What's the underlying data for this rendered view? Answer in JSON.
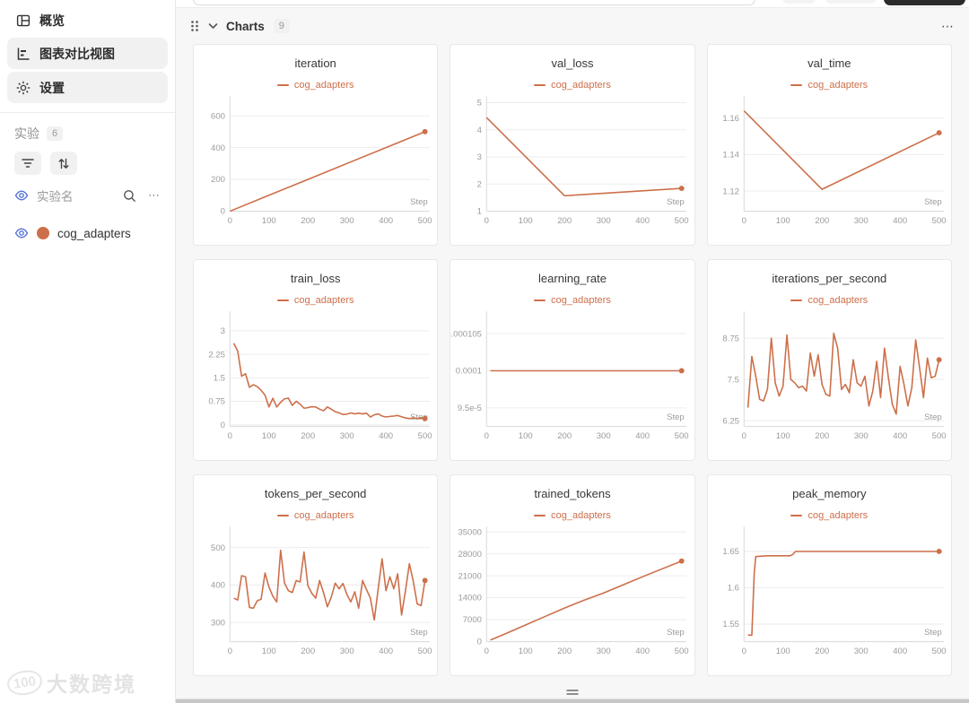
{
  "colors": {
    "accent": "#cd6f4a",
    "eye_icon": "#4e6ed3"
  },
  "sidebar": {
    "nav": [
      {
        "label": "概览",
        "icon": "overview-grid-icon"
      },
      {
        "label": "图表对比视图",
        "icon": "chart-compare-icon"
      },
      {
        "label": "设置",
        "icon": "settings-gear-icon"
      }
    ],
    "experiments_label": "实验",
    "experiments_count": "6",
    "experiment_name_label": "实验名",
    "row_menu_icon": "⋯",
    "experiments": [
      {
        "name": "cog_adapters",
        "color": "#cd6f4a"
      }
    ]
  },
  "chart_header": {
    "title": "Charts",
    "count": "9",
    "menu_icon": "⋯"
  },
  "watermark": {
    "logo_text": "100",
    "brand": "大数跨境"
  },
  "chart_data": [
    {
      "type": "line",
      "title": "iteration",
      "series_name": "cog_adapters",
      "xlabel": "Step",
      "xlim": [
        0,
        512
      ],
      "xticks": [
        0,
        100,
        200,
        300,
        400,
        500
      ],
      "ylim": [
        0,
        700
      ],
      "yticks": [
        0,
        200,
        400,
        600
      ],
      "ytick_labels": [
        "0",
        "200",
        "400",
        "600"
      ],
      "x": [
        0,
        100,
        200,
        300,
        400,
        500
      ],
      "y": [
        0,
        100,
        200,
        300,
        400,
        500
      ]
    },
    {
      "type": "line",
      "title": "val_loss",
      "series_name": "cog_adapters",
      "xlabel": "Step",
      "xlim": [
        0,
        512
      ],
      "xticks": [
        0,
        100,
        200,
        300,
        400,
        500
      ],
      "ylim": [
        1,
        5.1
      ],
      "yticks": [
        1,
        2,
        3,
        4,
        5
      ],
      "ytick_labels": [
        "1",
        "2",
        "3",
        "4",
        "5"
      ],
      "x": [
        0,
        200,
        500
      ],
      "y": [
        4.45,
        1.57,
        1.84
      ]
    },
    {
      "type": "line",
      "title": "val_time",
      "series_name": "cog_adapters",
      "xlabel": "Step",
      "xlim": [
        0,
        512
      ],
      "xticks": [
        0,
        100,
        200,
        300,
        400,
        500
      ],
      "ylim": [
        1.109,
        1.17
      ],
      "yticks": [
        1.12,
        1.14,
        1.16
      ],
      "ytick_labels": [
        "1.12",
        "1.14",
        "1.16"
      ],
      "x": [
        0,
        200,
        500
      ],
      "y": [
        1.164,
        1.121,
        1.152
      ]
    },
    {
      "type": "line",
      "title": "train_loss",
      "series_name": "cog_adapters",
      "xlabel": "Step",
      "xlim": [
        0,
        512
      ],
      "xticks": [
        0,
        100,
        200,
        300,
        400,
        500
      ],
      "ylim": [
        -0.05,
        3.5
      ],
      "yticks": [
        0,
        0.75,
        1.5,
        2.25,
        3
      ],
      "ytick_labels": [
        "0",
        "0.75",
        "1.5",
        "2.25",
        "3"
      ],
      "x": [
        10,
        20,
        30,
        40,
        50,
        60,
        70,
        80,
        90,
        100,
        110,
        120,
        130,
        140,
        150,
        160,
        170,
        180,
        190,
        200,
        210,
        220,
        230,
        240,
        250,
        260,
        270,
        280,
        290,
        300,
        310,
        320,
        330,
        340,
        350,
        360,
        370,
        380,
        390,
        400,
        410,
        420,
        430,
        440,
        450,
        460,
        470,
        480,
        490,
        500
      ],
      "y": [
        2.6,
        2.35,
        1.55,
        1.63,
        1.2,
        1.28,
        1.22,
        1.1,
        0.95,
        0.57,
        0.85,
        0.57,
        0.72,
        0.83,
        0.85,
        0.62,
        0.75,
        0.66,
        0.53,
        0.55,
        0.58,
        0.57,
        0.5,
        0.45,
        0.57,
        0.5,
        0.42,
        0.38,
        0.33,
        0.34,
        0.38,
        0.35,
        0.37,
        0.35,
        0.37,
        0.25,
        0.32,
        0.35,
        0.28,
        0.25,
        0.27,
        0.28,
        0.3,
        0.26,
        0.22,
        0.2,
        0.22,
        0.2,
        0.22,
        0.2
      ]
    },
    {
      "type": "line",
      "title": "learning_rate",
      "series_name": "cog_adapters",
      "xlabel": "Step",
      "xlim": [
        0,
        512
      ],
      "xticks": [
        0,
        100,
        200,
        300,
        400,
        500
      ],
      "ylim": [
        9.25e-05,
        0.0001075
      ],
      "yticks": [
        9.5e-05,
        0.0001,
        0.000105
      ],
      "ytick_labels": [
        "9.5e-5",
        "0.0001",
        "0.000105"
      ],
      "x": [
        10,
        500
      ],
      "y": [
        0.0001,
        0.0001
      ]
    },
    {
      "type": "line",
      "title": "iterations_per_second",
      "series_name": "cog_adapters",
      "xlabel": "Step",
      "xlim": [
        0,
        512
      ],
      "xticks": [
        0,
        100,
        200,
        300,
        400,
        500
      ],
      "ylim": [
        6.08,
        9.45
      ],
      "yticks": [
        6.25,
        7.5,
        8.75
      ],
      "ytick_labels": [
        "6.25",
        "7.5",
        "8.75"
      ],
      "x": [
        10,
        20,
        30,
        40,
        50,
        60,
        70,
        80,
        90,
        100,
        110,
        120,
        130,
        140,
        150,
        160,
        170,
        180,
        190,
        200,
        210,
        220,
        230,
        240,
        250,
        260,
        270,
        280,
        290,
        300,
        310,
        320,
        330,
        340,
        350,
        360,
        370,
        380,
        390,
        400,
        410,
        420,
        430,
        440,
        450,
        460,
        470,
        480,
        490,
        500
      ],
      "y": [
        6.65,
        8.2,
        7.6,
        6.9,
        6.85,
        7.2,
        8.75,
        7.4,
        7.0,
        7.3,
        8.85,
        7.5,
        7.4,
        7.25,
        7.3,
        7.15,
        8.3,
        7.6,
        8.25,
        7.35,
        7.05,
        7.0,
        8.9,
        8.45,
        7.2,
        7.35,
        7.1,
        8.1,
        7.4,
        7.3,
        7.6,
        6.7,
        7.15,
        8.05,
        6.95,
        8.45,
        7.55,
        6.75,
        6.45,
        7.9,
        7.35,
        6.7,
        7.25,
        8.7,
        7.85,
        6.95,
        8.15,
        7.55,
        7.6,
        8.1
      ]
    },
    {
      "type": "line",
      "title": "tokens_per_second",
      "series_name": "cog_adapters",
      "xlabel": "Step",
      "xlim": [
        0,
        512
      ],
      "xticks": [
        0,
        100,
        200,
        300,
        400,
        500
      ],
      "ylim": [
        249,
        546
      ],
      "yticks": [
        300,
        400,
        500
      ],
      "ytick_labels": [
        "300",
        "400",
        "500"
      ],
      "x": [
        10,
        20,
        30,
        40,
        50,
        60,
        70,
        80,
        90,
        100,
        110,
        120,
        130,
        140,
        150,
        160,
        170,
        180,
        190,
        200,
        210,
        220,
        230,
        240,
        250,
        260,
        270,
        280,
        290,
        300,
        310,
        320,
        330,
        340,
        350,
        360,
        370,
        380,
        390,
        400,
        410,
        420,
        430,
        440,
        450,
        460,
        470,
        480,
        490,
        500
      ],
      "y": [
        365,
        360,
        425,
        422,
        340,
        338,
        358,
        362,
        432,
        395,
        370,
        355,
        493,
        405,
        385,
        380,
        412,
        408,
        488,
        398,
        378,
        365,
        412,
        380,
        342,
        368,
        405,
        390,
        404,
        375,
        355,
        382,
        338,
        412,
        388,
        365,
        307,
        390,
        470,
        385,
        422,
        390,
        430,
        320,
        385,
        457,
        410,
        350,
        345,
        412
      ]
    },
    {
      "type": "line",
      "title": "trained_tokens",
      "series_name": "cog_adapters",
      "xlabel": "Step",
      "xlim": [
        0,
        512
      ],
      "xticks": [
        0,
        100,
        200,
        300,
        400,
        500
      ],
      "ylim": [
        0,
        35500
      ],
      "yticks": [
        0,
        7000,
        14000,
        21000,
        28000,
        35000
      ],
      "ytick_labels": [
        "0",
        "7000",
        "14000",
        "21000",
        "28000",
        "35000"
      ],
      "x": [
        10,
        50,
        100,
        150,
        200,
        250,
        300,
        350,
        400,
        450,
        500
      ],
      "y": [
        500,
        2600,
        5300,
        8000,
        10700,
        13200,
        15500,
        18100,
        20700,
        23200,
        25700
      ]
    },
    {
      "type": "line",
      "title": "peak_memory",
      "series_name": "cog_adapters",
      "xlabel": "Step",
      "xlim": [
        0,
        512
      ],
      "xticks": [
        0,
        100,
        200,
        300,
        400,
        500
      ],
      "ylim": [
        1.526,
        1.679
      ],
      "yticks": [
        1.55,
        1.6,
        1.65
      ],
      "ytick_labels": [
        "1.55",
        "1.6",
        "1.65"
      ],
      "x": [
        10,
        20,
        26,
        30,
        60,
        100,
        118,
        125,
        132,
        200,
        300,
        400,
        500
      ],
      "y": [
        1.535,
        1.535,
        1.62,
        1.643,
        1.644,
        1.644,
        1.644,
        1.646,
        1.65,
        1.65,
        1.65,
        1.65,
        1.65
      ]
    }
  ]
}
